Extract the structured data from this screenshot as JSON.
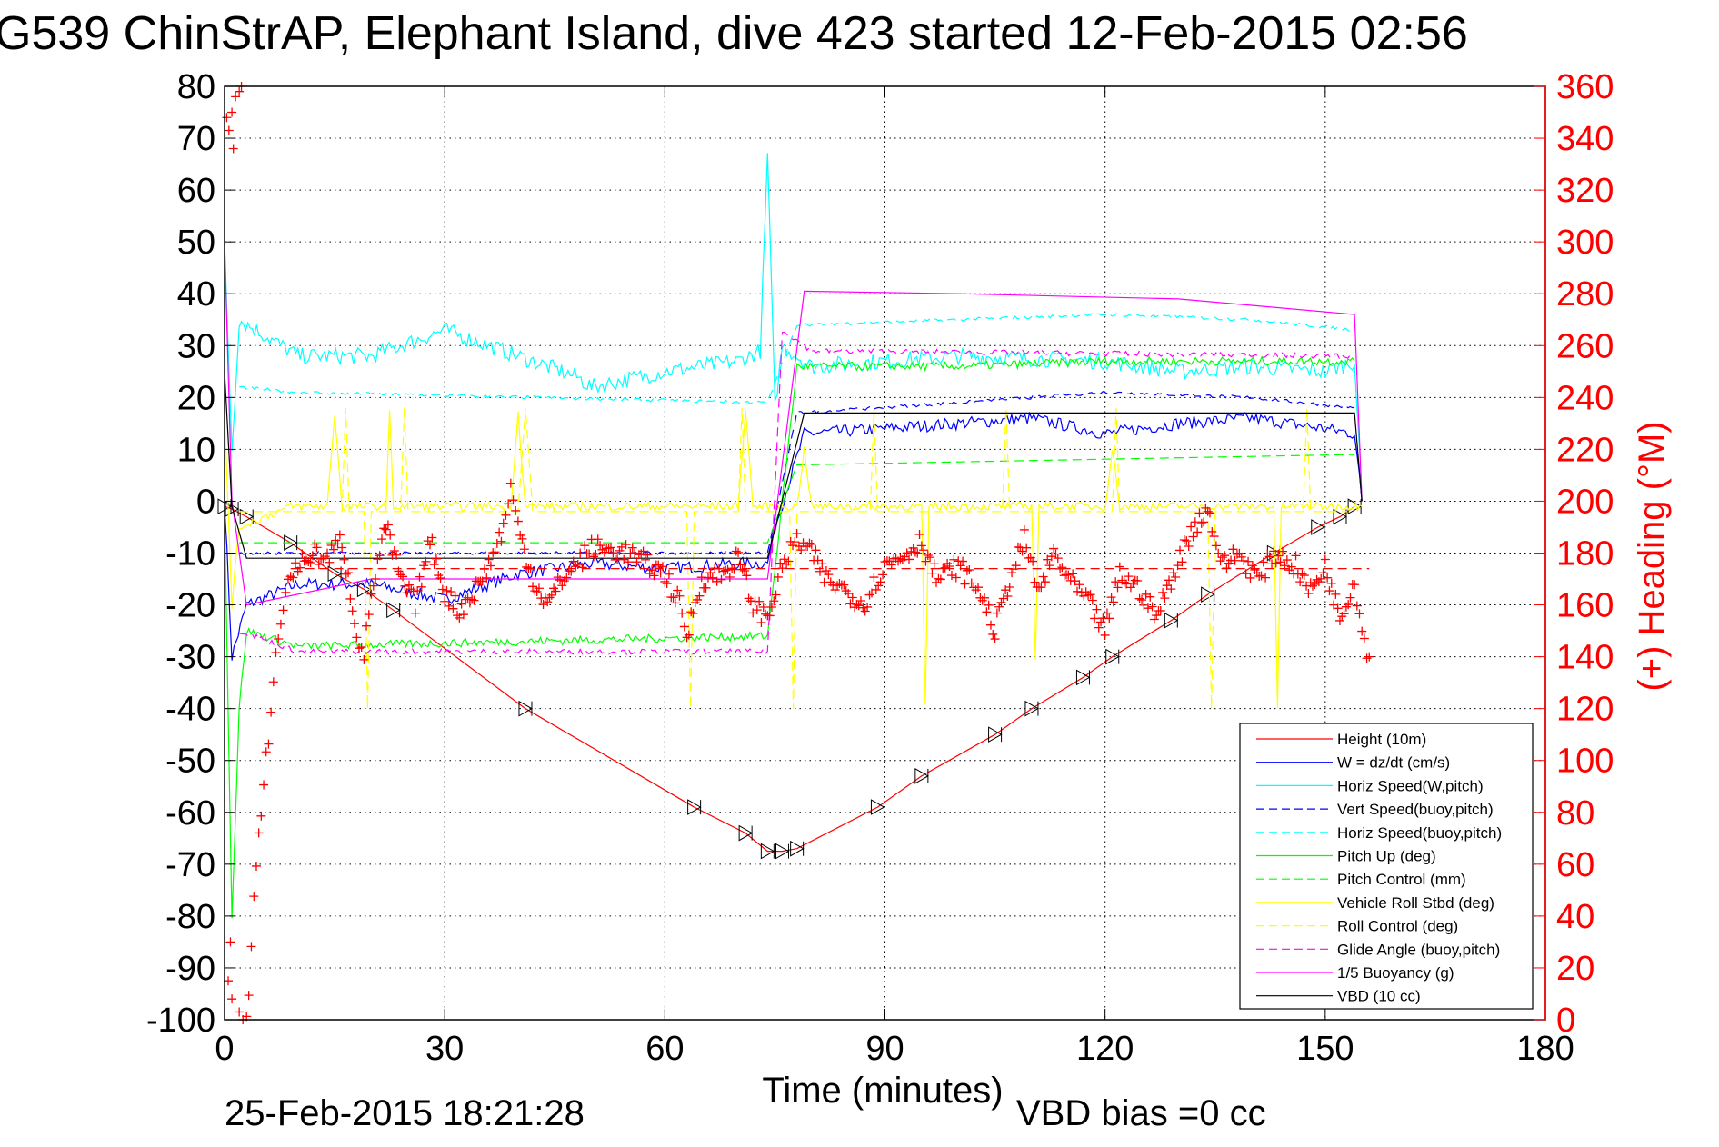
{
  "chart_data": {
    "type": "line",
    "title": "G539 ChinStrAP, Elephant Island, dive 423 started 12-Feb-2015 02:56",
    "xlabel": "Time (minutes)",
    "ylabel_right": "(+) Heading (°M)",
    "footer_left": "25-Feb-2015 18:21:28",
    "footer_right": "VBD bias =0 cc",
    "xlim": [
      0,
      180
    ],
    "ylim": [
      -100,
      80
    ],
    "ylim_right": [
      0,
      360
    ],
    "xticks": [
      "0",
      "30",
      "60",
      "90",
      "120",
      "150",
      "180"
    ],
    "yticks": [
      "80",
      "70",
      "60",
      "50",
      "40",
      "30",
      "20",
      "10",
      "0",
      "-10",
      "-20",
      "-30",
      "-40",
      "-50",
      "-60",
      "-70",
      "-80",
      "-90",
      "-100"
    ],
    "yticks_right": [
      "360",
      "340",
      "320",
      "300",
      "280",
      "260",
      "240",
      "220",
      "200",
      "180",
      "160",
      "140",
      "120",
      "100",
      "80",
      "60",
      "40",
      "20",
      "0"
    ],
    "grid": true,
    "legend_placement": "bottom-right",
    "series": [
      {
        "name": "Height (10m)",
        "color": "#ff0000",
        "style": "solid",
        "markers": "triangles",
        "noise": 0,
        "points": [
          [
            0,
            -1
          ],
          [
            1,
            -1.5
          ],
          [
            3,
            -3
          ],
          [
            9,
            -8
          ],
          [
            15,
            -14
          ],
          [
            19,
            -17
          ],
          [
            23,
            -21
          ],
          [
            41,
            -40
          ],
          [
            64,
            -59
          ],
          [
            71,
            -64
          ],
          [
            74,
            -67.5
          ],
          [
            76,
            -67.5
          ],
          [
            78,
            -67
          ],
          [
            89,
            -59
          ],
          [
            95,
            -53
          ],
          [
            105,
            -45
          ],
          [
            110,
            -40
          ],
          [
            117,
            -34
          ],
          [
            121,
            -30
          ],
          [
            129,
            -23
          ],
          [
            134,
            -18
          ],
          [
            143,
            -10
          ],
          [
            149,
            -5
          ],
          [
            152,
            -3
          ],
          [
            154,
            -1
          ]
        ]
      },
      {
        "name": "W = dz/dt (cm/s)",
        "color": "#0000ff",
        "style": "solid",
        "noise": 1.2,
        "points": [
          [
            0,
            0
          ],
          [
            1,
            -30
          ],
          [
            3,
            -20
          ],
          [
            10,
            -16
          ],
          [
            20,
            -16
          ],
          [
            30,
            -19
          ],
          [
            40,
            -14
          ],
          [
            50,
            -12
          ],
          [
            60,
            -13
          ],
          [
            70,
            -12
          ],
          [
            74,
            -12
          ],
          [
            75,
            -5
          ],
          [
            79,
            13
          ],
          [
            90,
            14
          ],
          [
            100,
            15
          ],
          [
            110,
            16
          ],
          [
            120,
            13
          ],
          [
            130,
            15
          ],
          [
            140,
            16
          ],
          [
            150,
            14
          ],
          [
            154,
            13
          ],
          [
            155,
            0
          ]
        ]
      },
      {
        "name": "Horiz Speed(W,pitch)",
        "color": "#00ffff",
        "style": "solid",
        "noise": 1.6,
        "points": [
          [
            0,
            50
          ],
          [
            1,
            10
          ],
          [
            2,
            35
          ],
          [
            10,
            28
          ],
          [
            20,
            28
          ],
          [
            30,
            33
          ],
          [
            40,
            28
          ],
          [
            48,
            24
          ],
          [
            50,
            22
          ],
          [
            60,
            25
          ],
          [
            70,
            27
          ],
          [
            73,
            29
          ],
          [
            74,
            67
          ],
          [
            75,
            18
          ],
          [
            76,
            30
          ],
          [
            80,
            26
          ],
          [
            100,
            28
          ],
          [
            120,
            27
          ],
          [
            130,
            25
          ],
          [
            140,
            26
          ],
          [
            150,
            25
          ],
          [
            154,
            27
          ],
          [
            155,
            0
          ]
        ]
      },
      {
        "name": "Vert Speed(buoy,pitch)",
        "color": "#0000ff",
        "style": "dashed",
        "noise": 0.3,
        "points": [
          [
            2,
            -10
          ],
          [
            74,
            -10
          ],
          [
            78,
            17
          ],
          [
            100,
            19
          ],
          [
            120,
            21
          ],
          [
            140,
            20
          ],
          [
            154,
            18
          ]
        ]
      },
      {
        "name": "Horiz Speed(buoy,pitch)",
        "color": "#00ffff",
        "style": "dashed",
        "noise": 0.3,
        "points": [
          [
            2,
            22
          ],
          [
            10,
            21
          ],
          [
            74,
            19
          ],
          [
            78,
            34
          ],
          [
            100,
            35
          ],
          [
            120,
            36
          ],
          [
            140,
            35
          ],
          [
            154,
            33
          ]
        ]
      },
      {
        "name": "Pitch Up (deg)",
        "color": "#00ff00",
        "style": "solid",
        "noise": 0.8,
        "points": [
          [
            0,
            -2
          ],
          [
            1,
            -80
          ],
          [
            2,
            -40
          ],
          [
            3,
            -25
          ],
          [
            10,
            -28
          ],
          [
            74,
            -26
          ],
          [
            78,
            26
          ],
          [
            100,
            26
          ],
          [
            120,
            27
          ],
          [
            154,
            27
          ]
        ]
      },
      {
        "name": "Pitch Control (mm)",
        "color": "#00ff00",
        "style": "dashed",
        "noise": 0,
        "points": [
          [
            2,
            -8
          ],
          [
            74,
            -8
          ],
          [
            78,
            7
          ],
          [
            154,
            9
          ]
        ]
      },
      {
        "name": "Vehicle Roll Stbd (deg)",
        "color": "#ffff00",
        "style": "solid",
        "noise": 0.8,
        "points": [
          [
            0,
            17
          ],
          [
            1,
            -20
          ],
          [
            2,
            -5
          ],
          [
            9,
            -1
          ],
          [
            14,
            -1
          ],
          [
            15,
            17
          ],
          [
            16,
            -1
          ],
          [
            22,
            -1
          ],
          [
            22.5,
            17
          ],
          [
            23,
            -1
          ],
          [
            39,
            -1
          ],
          [
            40,
            17
          ],
          [
            41,
            -1
          ],
          [
            70,
            -1
          ],
          [
            71,
            18
          ],
          [
            72,
            -1
          ],
          [
            78,
            -1
          ],
          [
            79,
            10
          ],
          [
            80,
            -1
          ],
          [
            95,
            -1
          ],
          [
            95.5,
            -40
          ],
          [
            96,
            -1
          ],
          [
            110,
            -1
          ],
          [
            110.5,
            -30
          ],
          [
            111,
            -1
          ],
          [
            120,
            -1
          ],
          [
            121,
            10
          ],
          [
            122,
            -1
          ],
          [
            143,
            -1
          ],
          [
            143.5,
            -40
          ],
          [
            144,
            -1
          ],
          [
            155,
            -1
          ]
        ]
      },
      {
        "name": "Roll Control (deg)",
        "color": "#ffff00",
        "style": "dashed",
        "noise": 0,
        "points": [
          [
            2,
            -2
          ],
          [
            16,
            -2
          ],
          [
            16.5,
            18
          ],
          [
            17,
            -2
          ],
          [
            19,
            -2
          ],
          [
            19.5,
            -40
          ],
          [
            20,
            -2
          ],
          [
            24,
            -2
          ],
          [
            24.5,
            18
          ],
          [
            25,
            -2
          ],
          [
            40,
            -2
          ],
          [
            41,
            18
          ],
          [
            42,
            -2
          ],
          [
            63,
            -2
          ],
          [
            63.5,
            -40
          ],
          [
            64,
            -2
          ],
          [
            70,
            -2
          ],
          [
            70.5,
            18
          ],
          [
            71,
            -2
          ],
          [
            77,
            -2
          ],
          [
            77.5,
            -40
          ],
          [
            78,
            -2
          ],
          [
            88,
            -2
          ],
          [
            88.5,
            18
          ],
          [
            89,
            -2
          ],
          [
            106,
            -2
          ],
          [
            106.5,
            18
          ],
          [
            107,
            -2
          ],
          [
            121,
            -2
          ],
          [
            121.5,
            18
          ],
          [
            122,
            -2
          ],
          [
            134,
            -2
          ],
          [
            134.5,
            -40
          ],
          [
            135,
            -2
          ],
          [
            147,
            -2
          ],
          [
            147.5,
            18
          ],
          [
            148,
            -2
          ],
          [
            153,
            -2
          ]
        ]
      },
      {
        "name": "Glide Angle (buoy,pitch)",
        "color": "#ff00ff",
        "style": "dashed",
        "noise": 0.5,
        "points": [
          [
            2,
            -25
          ],
          [
            10,
            -29
          ],
          [
            74,
            -29
          ],
          [
            76,
            33
          ],
          [
            80,
            29
          ],
          [
            154,
            28
          ]
        ]
      },
      {
        "name": "1/5 Buoyancy (g)",
        "color": "#ff00ff",
        "style": "solid",
        "noise": 0,
        "points": [
          [
            0,
            50
          ],
          [
            1,
            0
          ],
          [
            3,
            -20
          ],
          [
            20,
            -15
          ],
          [
            74,
            -15
          ],
          [
            79,
            40.5
          ],
          [
            100,
            40
          ],
          [
            130,
            39
          ],
          [
            154,
            36
          ],
          [
            155,
            0
          ]
        ]
      },
      {
        "name": "VBD (10 cc)",
        "color": "#000000",
        "style": "solid",
        "noise": 0,
        "points": [
          [
            0,
            25
          ],
          [
            1,
            -1
          ],
          [
            3,
            -11
          ],
          [
            74,
            -11
          ],
          [
            79,
            17
          ],
          [
            154,
            17
          ],
          [
            155,
            0
          ]
        ]
      }
    ],
    "heading": {
      "name": "Heading",
      "color": "#ff0000",
      "marker": "+",
      "mean_deg": 174,
      "early_points": [
        [
          0.3,
          348
        ],
        [
          0.6,
          343
        ],
        [
          1,
          350
        ],
        [
          1.5,
          356
        ],
        [
          2,
          358
        ],
        [
          2.3,
          360
        ],
        [
          1.2,
          336
        ],
        [
          0.5,
          15
        ],
        [
          1,
          8
        ],
        [
          2,
          3
        ],
        [
          2.5,
          0
        ],
        [
          0.8,
          30
        ]
      ],
      "points": [
        [
          3,
          0
        ],
        [
          3.3,
          10
        ],
        [
          4,
          45
        ],
        [
          5,
          80
        ],
        [
          6,
          110
        ],
        [
          7,
          140
        ],
        [
          8,
          160
        ],
        [
          9,
          172
        ],
        [
          10,
          175
        ],
        [
          12,
          180
        ],
        [
          14,
          178
        ],
        [
          16,
          185
        ],
        [
          18,
          150
        ],
        [
          19,
          140
        ],
        [
          20,
          165
        ],
        [
          22,
          190
        ],
        [
          24,
          170
        ],
        [
          26,
          160
        ],
        [
          28,
          185
        ],
        [
          30,
          165
        ],
        [
          32,
          158
        ],
        [
          34,
          165
        ],
        [
          36,
          175
        ],
        [
          38,
          190
        ],
        [
          39,
          205
        ],
        [
          40,
          190
        ],
        [
          42,
          170
        ],
        [
          44,
          160
        ],
        [
          46,
          170
        ],
        [
          50,
          182
        ],
        [
          55,
          180
        ],
        [
          60,
          172
        ],
        [
          62,
          160
        ],
        [
          63,
          148
        ],
        [
          65,
          170
        ],
        [
          68,
          172
        ],
        [
          70,
          178
        ],
        [
          72,
          160
        ],
        [
          74,
          155
        ],
        [
          76,
          175
        ],
        [
          78,
          185
        ],
        [
          80,
          180
        ],
        [
          82,
          170
        ],
        [
          85,
          165
        ],
        [
          87,
          160
        ],
        [
          90,
          175
        ],
        [
          93,
          180
        ],
        [
          95,
          185
        ],
        [
          97,
          170
        ],
        [
          100,
          175
        ],
        [
          103,
          165
        ],
        [
          105,
          150
        ],
        [
          107,
          170
        ],
        [
          109,
          185
        ],
        [
          111,
          165
        ],
        [
          113,
          180
        ],
        [
          115,
          170
        ],
        [
          118,
          160
        ],
        [
          120,
          150
        ],
        [
          122,
          172
        ],
        [
          125,
          165
        ],
        [
          127,
          155
        ],
        [
          129,
          170
        ],
        [
          132,
          190
        ],
        [
          134,
          197
        ],
        [
          136,
          175
        ],
        [
          138,
          180
        ],
        [
          141,
          170
        ],
        [
          143,
          180
        ],
        [
          146,
          175
        ],
        [
          148,
          165
        ],
        [
          150,
          175
        ],
        [
          152,
          155
        ],
        [
          154,
          170
        ],
        [
          155,
          150
        ],
        [
          156,
          140
        ]
      ]
    }
  }
}
